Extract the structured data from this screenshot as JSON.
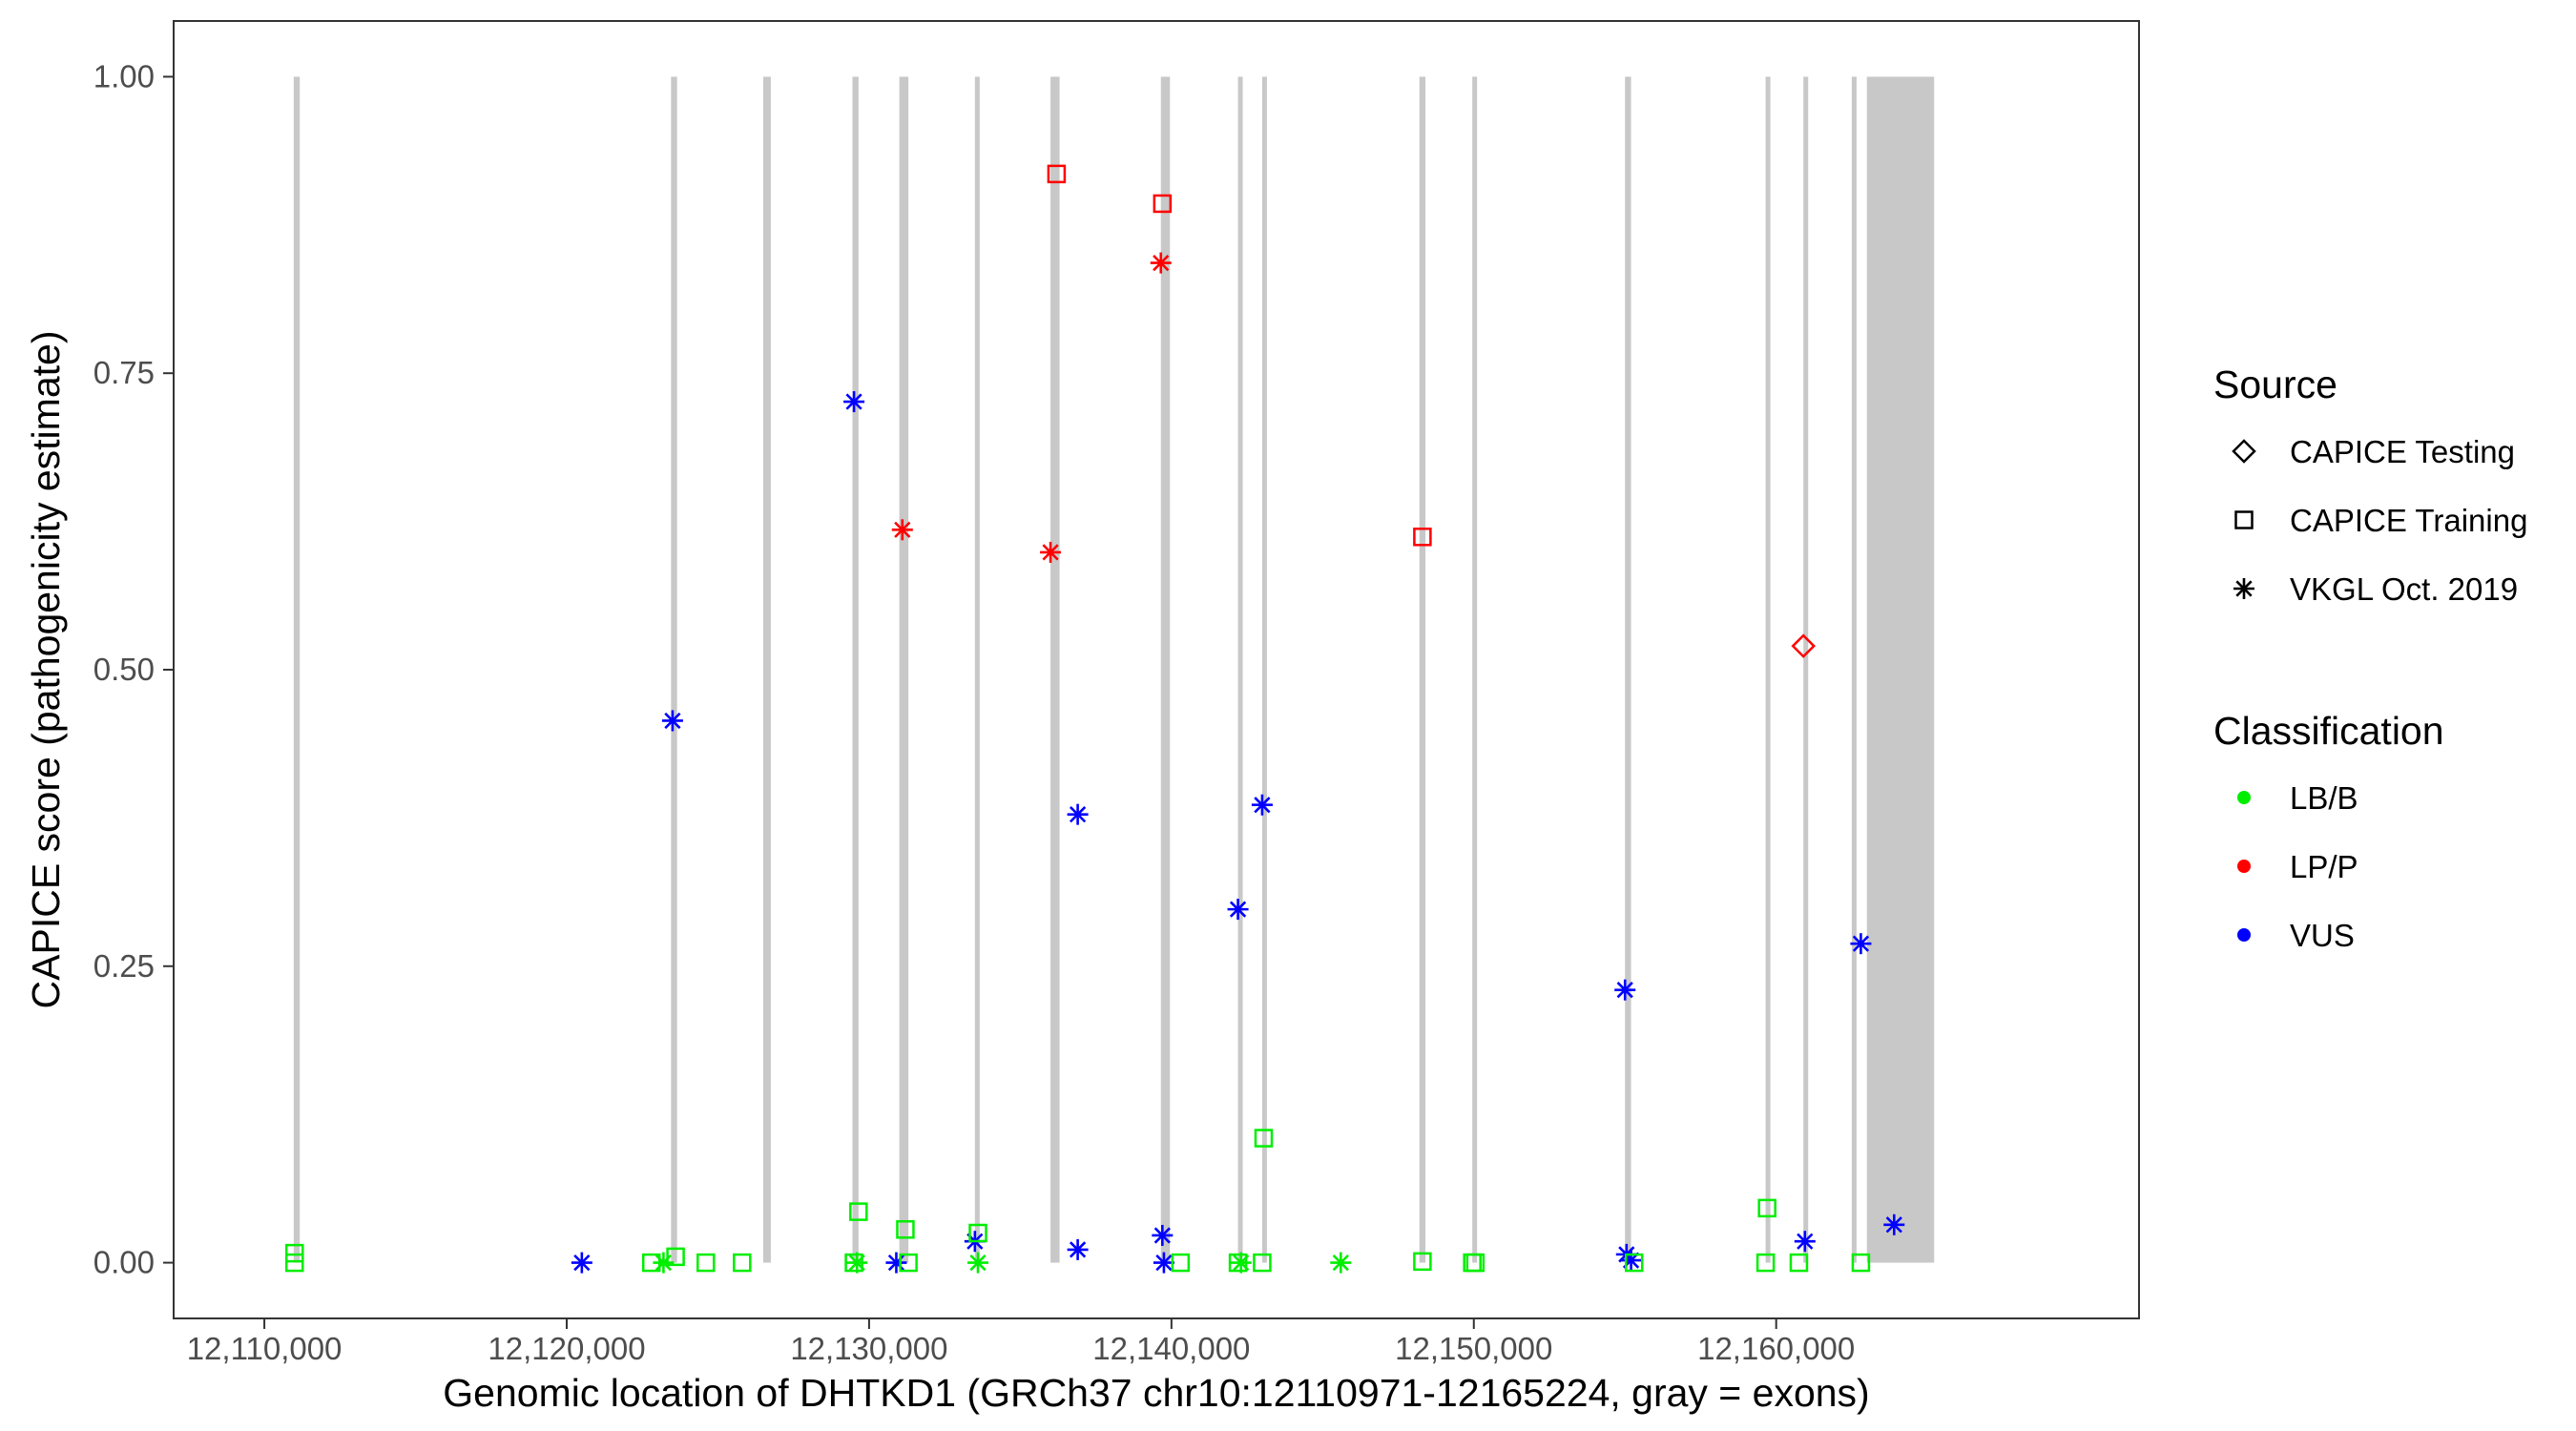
{
  "chart_data": {
    "type": "scatter",
    "xlabel": "Genomic location of DHTKD1 (GRCh37 chr10:12110971-12165224, gray = exons)",
    "ylabel": "CAPICE score (pathogenicity estimate)",
    "xlim": [
      12107000,
      12172000
    ],
    "ylim": [
      -0.047,
      1.047
    ],
    "x_ticks": [
      12110000,
      12120000,
      12130000,
      12140000,
      12150000,
      12160000
    ],
    "x_tick_labels": [
      "12,110,000",
      "12,120,000",
      "12,130,000",
      "12,140,000",
      "12,150,000",
      "12,160,000"
    ],
    "y_ticks": [
      0,
      0.25,
      0.5,
      0.75,
      1.0
    ],
    "y_tick_labels": [
      "0.00",
      "0.25",
      "0.50",
      "0.75",
      "1.00"
    ],
    "grid": false,
    "legend_position": "right",
    "exons": [
      [
        12110971,
        12111171
      ],
      [
        12123450,
        12123650
      ],
      [
        12126500,
        12126750
      ],
      [
        12129450,
        12129650
      ],
      [
        12131000,
        12131300
      ],
      [
        12133500,
        12133650
      ],
      [
        12136000,
        12136300
      ],
      [
        12139650,
        12139950
      ],
      [
        12142200,
        12142300
      ],
      [
        12143000,
        12143150
      ],
      [
        12148200,
        12148400
      ],
      [
        12149950,
        12150050
      ],
      [
        12155000,
        12155200
      ],
      [
        12159650,
        12159750
      ],
      [
        12160900,
        12161000
      ],
      [
        12162500,
        12162650
      ],
      [
        12163000,
        12165224
      ]
    ],
    "legends": {
      "source": {
        "title": "Source",
        "items": [
          {
            "key": "testing",
            "label": "CAPICE Testing",
            "shape": "diamond"
          },
          {
            "key": "training",
            "label": "CAPICE Training",
            "shape": "square"
          },
          {
            "key": "vkgl",
            "label": "VKGL Oct. 2019",
            "shape": "asterisk"
          }
        ]
      },
      "classification": {
        "title": "Classification",
        "items": [
          {
            "key": "LB/B",
            "label": "LB/B",
            "color": "#00ee00"
          },
          {
            "key": "LP/P",
            "label": "LP/P",
            "color": "#ff0000"
          },
          {
            "key": "VUS",
            "label": "VUS",
            "color": "#0000ff"
          }
        ]
      }
    },
    "points": [
      {
        "x": 12111000,
        "y": 0.008,
        "source": "training",
        "class": "LB/B"
      },
      {
        "x": 12111000,
        "y": 0.0,
        "source": "training",
        "class": "LB/B"
      },
      {
        "x": 12120500,
        "y": 0.0,
        "source": "vkgl",
        "class": "VUS"
      },
      {
        "x": 12123500,
        "y": 0.457,
        "source": "vkgl",
        "class": "VUS"
      },
      {
        "x": 12122800,
        "y": 0.0,
        "source": "training",
        "class": "LB/B"
      },
      {
        "x": 12123200,
        "y": 0.0,
        "source": "vkgl",
        "class": "LB/B"
      },
      {
        "x": 12123600,
        "y": 0.005,
        "source": "training",
        "class": "LB/B"
      },
      {
        "x": 12124600,
        "y": 0.0,
        "source": "training",
        "class": "LB/B"
      },
      {
        "x": 12125800,
        "y": 0.0,
        "source": "training",
        "class": "LB/B"
      },
      {
        "x": 12129500,
        "y": 0.726,
        "source": "vkgl",
        "class": "VUS"
      },
      {
        "x": 12129650,
        "y": 0.043,
        "source": "training",
        "class": "LB/B"
      },
      {
        "x": 12129500,
        "y": 0.0,
        "source": "training",
        "class": "LB/B"
      },
      {
        "x": 12129600,
        "y": 0.0,
        "source": "vkgl",
        "class": "LB/B"
      },
      {
        "x": 12131100,
        "y": 0.618,
        "source": "vkgl",
        "class": "LP/P"
      },
      {
        "x": 12131200,
        "y": 0.028,
        "source": "training",
        "class": "LB/B"
      },
      {
        "x": 12130900,
        "y": 0.0,
        "source": "vkgl",
        "class": "VUS"
      },
      {
        "x": 12131300,
        "y": 0.0,
        "source": "training",
        "class": "LB/B"
      },
      {
        "x": 12133500,
        "y": 0.018,
        "source": "vkgl",
        "class": "VUS"
      },
      {
        "x": 12133600,
        "y": 0.025,
        "source": "training",
        "class": "LB/B"
      },
      {
        "x": 12133600,
        "y": 0.0,
        "source": "vkgl",
        "class": "LB/B"
      },
      {
        "x": 12136200,
        "y": 0.918,
        "source": "training",
        "class": "LP/P"
      },
      {
        "x": 12136000,
        "y": 0.599,
        "source": "vkgl",
        "class": "LP/P"
      },
      {
        "x": 12136900,
        "y": 0.378,
        "source": "vkgl",
        "class": "VUS"
      },
      {
        "x": 12136900,
        "y": 0.011,
        "source": "vkgl",
        "class": "VUS"
      },
      {
        "x": 12139700,
        "y": 0.893,
        "source": "training",
        "class": "LP/P"
      },
      {
        "x": 12139650,
        "y": 0.843,
        "source": "vkgl",
        "class": "LP/P"
      },
      {
        "x": 12139700,
        "y": 0.023,
        "source": "vkgl",
        "class": "VUS"
      },
      {
        "x": 12139750,
        "y": 0.0,
        "source": "vkgl",
        "class": "VUS"
      },
      {
        "x": 12140300,
        "y": 0.0,
        "source": "training",
        "class": "LB/B"
      },
      {
        "x": 12142200,
        "y": 0.298,
        "source": "vkgl",
        "class": "VUS"
      },
      {
        "x": 12142200,
        "y": 0.0,
        "source": "training",
        "class": "LB/B"
      },
      {
        "x": 12142300,
        "y": 0.0,
        "source": "vkgl",
        "class": "LB/B"
      },
      {
        "x": 12143000,
        "y": 0.386,
        "source": "vkgl",
        "class": "VUS"
      },
      {
        "x": 12143050,
        "y": 0.105,
        "source": "training",
        "class": "LB/B"
      },
      {
        "x": 12143000,
        "y": 0.0,
        "source": "training",
        "class": "LB/B"
      },
      {
        "x": 12145600,
        "y": 0.0,
        "source": "vkgl",
        "class": "LB/B"
      },
      {
        "x": 12148300,
        "y": 0.612,
        "source": "training",
        "class": "LP/P"
      },
      {
        "x": 12148300,
        "y": 0.001,
        "source": "training",
        "class": "LB/B"
      },
      {
        "x": 12149950,
        "y": 0.0,
        "source": "training",
        "class": "LB/B"
      },
      {
        "x": 12150050,
        "y": 0.0,
        "source": "training",
        "class": "LB/B"
      },
      {
        "x": 12155000,
        "y": 0.23,
        "source": "vkgl",
        "class": "VUS"
      },
      {
        "x": 12155050,
        "y": 0.007,
        "source": "vkgl",
        "class": "VUS"
      },
      {
        "x": 12155200,
        "y": 0.002,
        "source": "vkgl",
        "class": "VUS"
      },
      {
        "x": 12155300,
        "y": 0.0,
        "source": "training",
        "class": "LB/B"
      },
      {
        "x": 12159700,
        "y": 0.046,
        "source": "training",
        "class": "LB/B"
      },
      {
        "x": 12159650,
        "y": 0.0,
        "source": "training",
        "class": "LB/B"
      },
      {
        "x": 12160900,
        "y": 0.52,
        "source": "testing",
        "class": "LP/P"
      },
      {
        "x": 12160950,
        "y": 0.018,
        "source": "vkgl",
        "class": "VUS"
      },
      {
        "x": 12160750,
        "y": 0.0,
        "source": "training",
        "class": "LB/B"
      },
      {
        "x": 12162800,
        "y": 0.269,
        "source": "vkgl",
        "class": "VUS"
      },
      {
        "x": 12162800,
        "y": 0.0,
        "source": "training",
        "class": "LB/B"
      },
      {
        "x": 12163900,
        "y": 0.032,
        "source": "vkgl",
        "class": "VUS"
      }
    ]
  }
}
